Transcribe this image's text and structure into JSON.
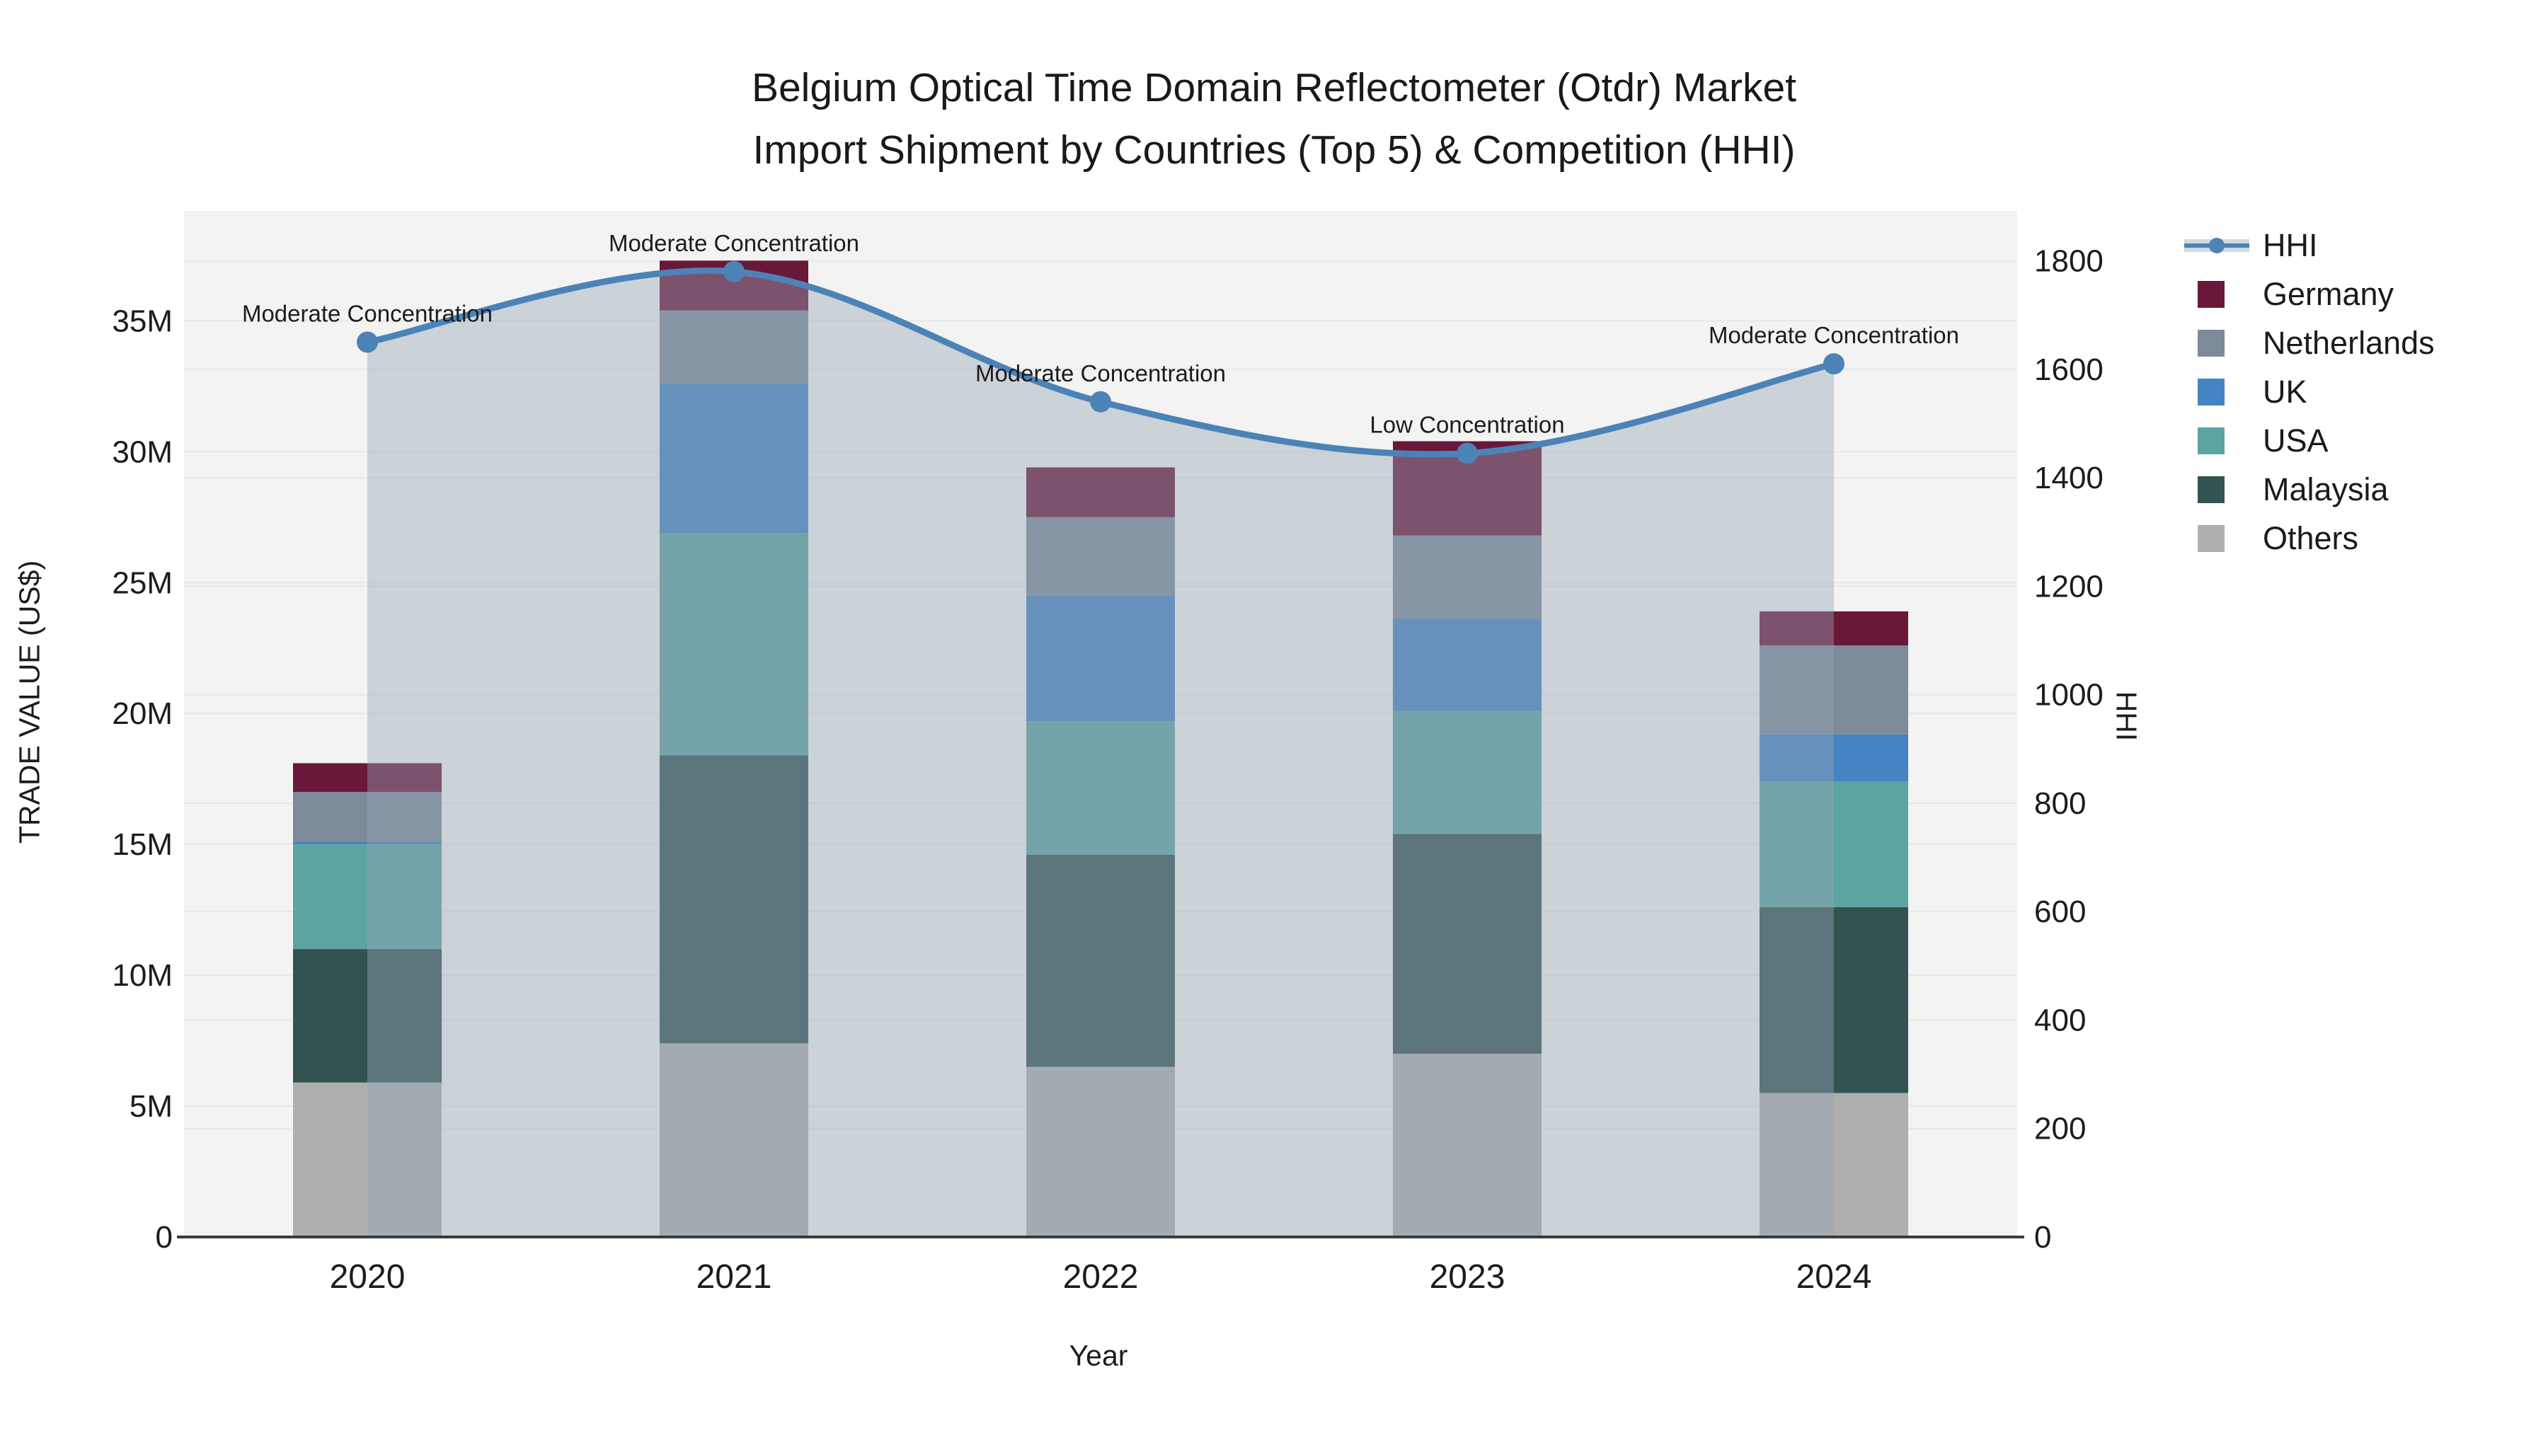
{
  "title": {
    "line1": "Belgium Optical Time Domain Reflectometer (Otdr) Market",
    "line2": "Import Shipment by Countries (Top 5) & Competition (HHI)"
  },
  "chart_data": {
    "type": "bar",
    "subtype": "stacked-bars-with-line",
    "categories": [
      "2020",
      "2021",
      "2022",
      "2023",
      "2024"
    ],
    "values_unit": "M US$",
    "series": [
      {
        "name": "Others",
        "color": "#adb0ae",
        "values": [
          5.9,
          7.4,
          6.5,
          7.0,
          5.5
        ]
      },
      {
        "name": "Malaysia",
        "color": "#335350",
        "values": [
          5.1,
          11.0,
          8.1,
          8.4,
          7.1
        ]
      },
      {
        "name": "USA",
        "color": "#5ca4a3",
        "values": [
          4.0,
          8.5,
          5.1,
          4.7,
          4.8
        ]
      },
      {
        "name": "UK",
        "color": "#4484c2",
        "values": [
          0.1,
          5.7,
          4.8,
          3.5,
          1.8
        ]
      },
      {
        "name": "Netherlands",
        "color": "#7c8a99",
        "values": [
          1.9,
          2.8,
          3.0,
          3.2,
          3.4
        ]
      },
      {
        "name": "Germany",
        "color": "#6a1839",
        "values": [
          1.1,
          1.9,
          1.9,
          3.6,
          1.3
        ]
      }
    ],
    "bar_totals": [
      18.1,
      37.3,
      29.4,
      30.4,
      23.9
    ],
    "line_series": {
      "name": "HHI",
      "color": "#4b83b7",
      "area_fill": "rgba(151,164,182,0.42)",
      "values": [
        1650,
        1780,
        1540,
        1445,
        1610
      ]
    },
    "annotations": [
      {
        "category": "2020",
        "text": "Moderate Concentration"
      },
      {
        "category": "2021",
        "text": "Moderate Concentration"
      },
      {
        "category": "2022",
        "text": "Moderate Concentration"
      },
      {
        "category": "2023",
        "text": "Low Concentration"
      },
      {
        "category": "2024",
        "text": "Moderate Concentration"
      }
    ],
    "xlabel": "Year",
    "y_left": {
      "title": "TRADE VALUE (US$)",
      "tick_labels": [
        "0",
        "5M",
        "10M",
        "15M",
        "20M",
        "25M",
        "30M",
        "35M"
      ],
      "tick_values": [
        0,
        5,
        10,
        15,
        20,
        25,
        30,
        35
      ],
      "range": [
        0,
        39.2
      ]
    },
    "y_right": {
      "title": "HHI",
      "tick_labels": [
        "0",
        "200",
        "400",
        "600",
        "800",
        "1000",
        "1200",
        "1400",
        "1600",
        "1800"
      ],
      "tick_values": [
        0,
        200,
        400,
        600,
        800,
        1000,
        1200,
        1400,
        1600,
        1800
      ],
      "range": [
        0,
        1892
      ]
    },
    "grid": true,
    "legend_position": "right"
  },
  "legend": {
    "items": [
      {
        "label": "HHI",
        "kind": "line"
      },
      {
        "label": "Germany",
        "kind": "swatch"
      },
      {
        "label": "Netherlands",
        "kind": "swatch"
      },
      {
        "label": "UK",
        "kind": "swatch"
      },
      {
        "label": "USA",
        "kind": "swatch"
      },
      {
        "label": "Malaysia",
        "kind": "swatch"
      },
      {
        "label": "Others",
        "kind": "swatch"
      }
    ]
  },
  "style": {
    "plot_bg": "#f2f3f2",
    "grid_color": "#e7e8e8",
    "axis_line_color": "#3b3b3b",
    "text_color": "#1c1c1c"
  }
}
